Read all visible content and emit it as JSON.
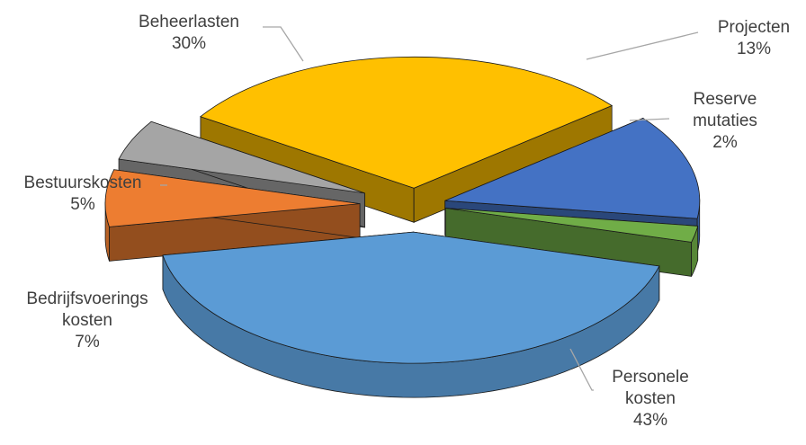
{
  "chart_data": {
    "type": "pie",
    "title": "",
    "categories": [
      "Projecten",
      "Reserve mutaties",
      "Personele kosten",
      "Bedrijfsvoerings kosten",
      "Bestuurskosten",
      "Beheerlasten"
    ],
    "values": [
      13,
      2,
      43,
      7,
      5,
      30
    ],
    "unit": "%",
    "label_lines": [
      [
        "Projecten",
        "13%"
      ],
      [
        "Reserve",
        "mutaties",
        "2%"
      ],
      [
        "Personele",
        "kosten",
        "43%"
      ],
      [
        "Bedrijfsvoerings",
        "kosten",
        "7%"
      ],
      [
        "Bestuurskosten",
        "5%"
      ],
      [
        "Beheerlasten",
        "30%"
      ]
    ],
    "colors": [
      "#4472c4",
      "#70ad47",
      "#5b9bd5",
      "#ed7d31",
      "#a5a5a5",
      "#ffc000"
    ],
    "exploded": true,
    "three_d": true,
    "legend": "none"
  }
}
